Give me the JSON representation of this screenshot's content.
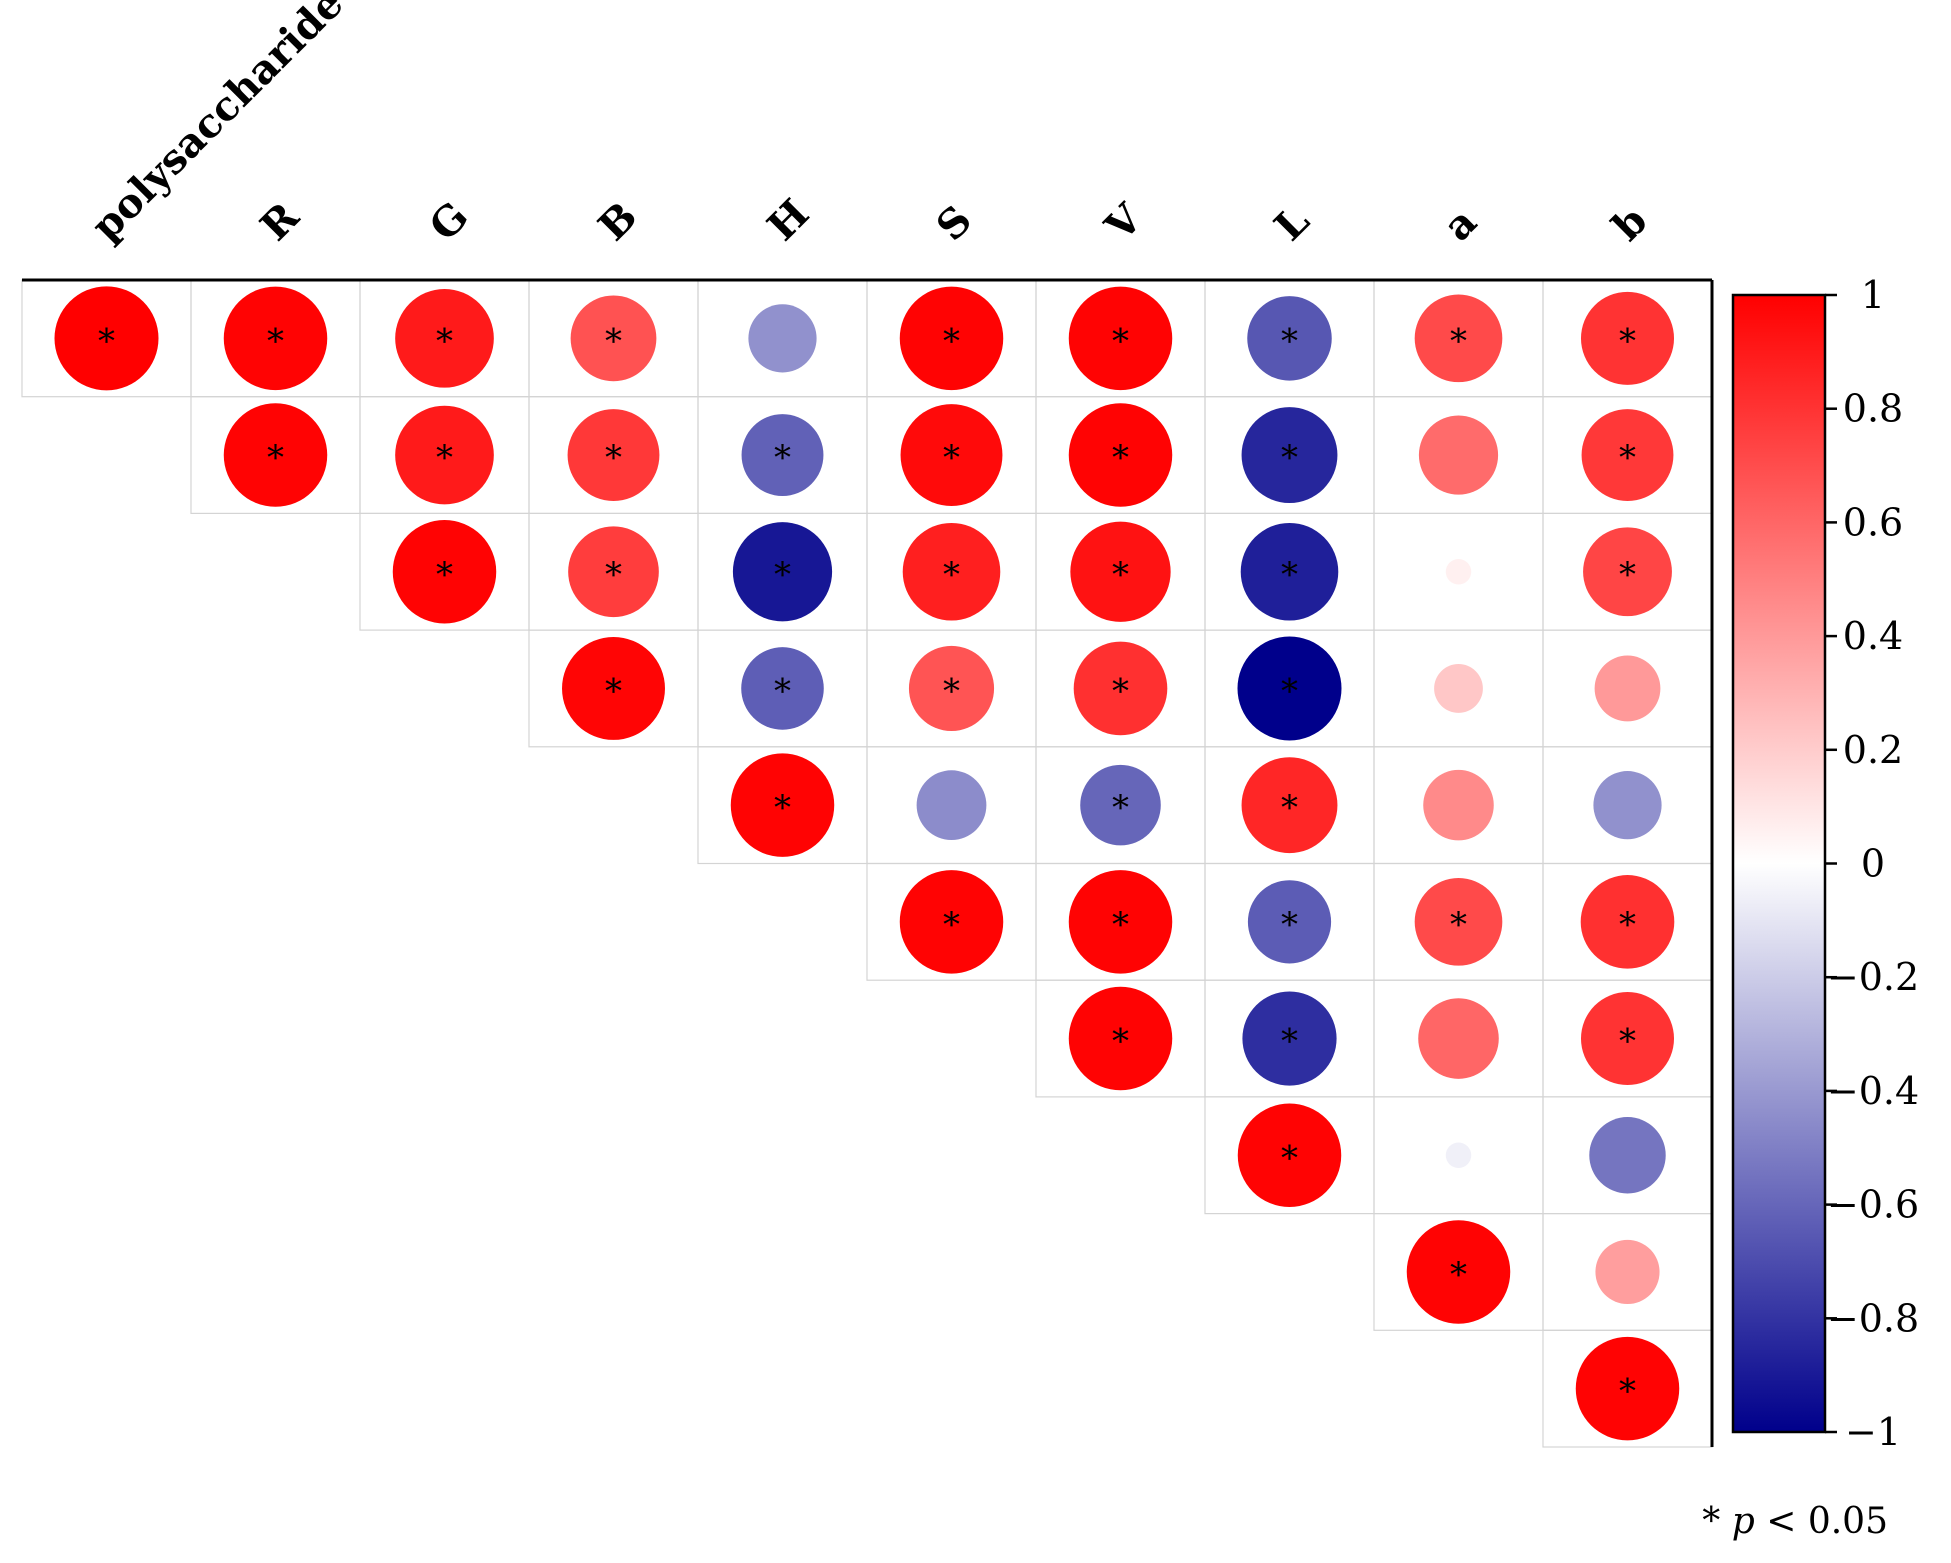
{
  "chart_data": {
    "type": "heatmap",
    "style": "upper-triangle correlation circle plot",
    "variables": [
      "polysaccharide",
      "R",
      "G",
      "B",
      "H",
      "S",
      "V",
      "L",
      "a",
      "b"
    ],
    "matrix": [
      [
        1.0,
        0.99,
        0.9,
        0.68,
        -0.43,
        0.99,
        0.99,
        -0.66,
        0.71,
        0.8
      ],
      [
        null,
        0.99,
        0.9,
        0.78,
        -0.62,
        0.96,
        0.99,
        -0.85,
        0.58,
        0.78
      ],
      [
        null,
        null,
        0.99,
        0.76,
        -0.91,
        0.88,
        0.93,
        -0.88,
        0.06,
        0.73
      ],
      [
        null,
        null,
        null,
        0.98,
        -0.63,
        0.67,
        0.81,
        -1.0,
        0.22,
        0.4
      ],
      [
        null,
        null,
        null,
        null,
        0.99,
        -0.45,
        -0.6,
        0.85,
        0.46,
        -0.43
      ],
      [
        null,
        null,
        null,
        null,
        null,
        0.99,
        0.99,
        -0.64,
        0.71,
        0.81
      ],
      [
        null,
        null,
        null,
        null,
        null,
        null,
        0.99,
        -0.82,
        0.6,
        0.8
      ],
      [
        null,
        null,
        null,
        null,
        null,
        null,
        null,
        0.99,
        -0.06,
        -0.54
      ],
      [
        null,
        null,
        null,
        null,
        null,
        null,
        null,
        null,
        0.99,
        0.38
      ],
      [
        null,
        null,
        null,
        null,
        null,
        null,
        null,
        null,
        null,
        0.99
      ]
    ],
    "significant": [
      [
        true,
        true,
        true,
        true,
        false,
        true,
        true,
        true,
        true,
        true
      ],
      [
        null,
        true,
        true,
        true,
        true,
        true,
        true,
        true,
        false,
        true
      ],
      [
        null,
        null,
        true,
        true,
        true,
        true,
        true,
        true,
        false,
        true
      ],
      [
        null,
        null,
        null,
        true,
        true,
        true,
        true,
        true,
        false,
        false
      ],
      [
        null,
        null,
        null,
        null,
        true,
        false,
        true,
        true,
        false,
        false
      ],
      [
        null,
        null,
        null,
        null,
        null,
        true,
        true,
        true,
        true,
        true
      ],
      [
        null,
        null,
        null,
        null,
        null,
        null,
        true,
        true,
        false,
        true
      ],
      [
        null,
        null,
        null,
        null,
        null,
        null,
        null,
        true,
        false,
        false
      ],
      [
        null,
        null,
        null,
        null,
        null,
        null,
        null,
        null,
        true,
        false
      ],
      [
        null,
        null,
        null,
        null,
        null,
        null,
        null,
        null,
        null,
        true
      ]
    ],
    "significance_marker": "*",
    "colorbar": {
      "range": [
        -1,
        1
      ],
      "ticks": [
        1,
        0.8,
        0.6,
        0.4,
        0.2,
        0,
        -0.2,
        -0.4,
        -0.6,
        -0.8,
        -1
      ],
      "tick_labels": [
        "1",
        "0.8",
        "0.6",
        "0.4",
        "0.2",
        "0",
        "−0.2",
        "−0.4",
        "−0.6",
        "−0.8",
        "−1"
      ],
      "colors": {
        "high": "#ff0000",
        "mid": "#ffffff",
        "low": "#00008b"
      }
    },
    "note": {
      "prefix": "* ",
      "italic": "p",
      "suffix": " < 0.05"
    }
  }
}
